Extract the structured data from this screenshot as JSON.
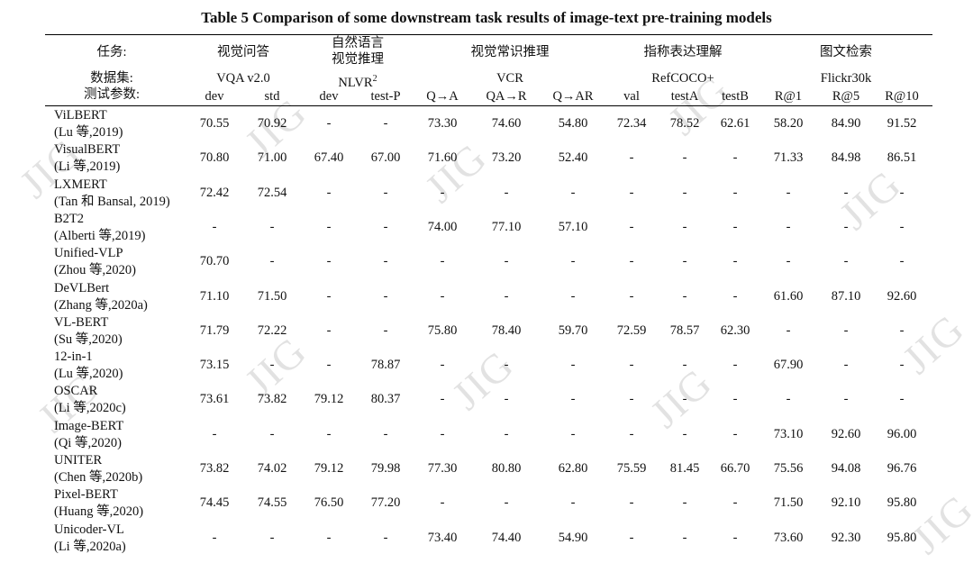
{
  "title": "Table  5  Comparison of some downstream task results of image-text pre-training models",
  "header": {
    "task_label": "任务:",
    "dataset_label": "数据集:",
    "param_label": "测试参数:",
    "tasks": [
      "视觉问答",
      "自然语言\n视觉推理",
      "视觉常识推理",
      "指称表达理解",
      "图文检索"
    ],
    "datasets": [
      "VQA v2.0",
      "NLVR²",
      "VCR",
      "RefCOCO+",
      "Flickr30k"
    ],
    "params": [
      "dev",
      "std",
      "dev",
      "test-P",
      "Q→A",
      "QA→R",
      "Q→AR",
      "val",
      "testA",
      "testB",
      "R@1",
      "R@5",
      "R@10"
    ]
  },
  "rows": [
    {
      "model": "ViLBERT",
      "cite": "(Lu 等,2019)",
      "values": [
        "70.55",
        "70.92",
        "-",
        "-",
        "73.30",
        "74.60",
        "54.80",
        "72.34",
        "78.52",
        "62.61",
        "58.20",
        "84.90",
        "91.52"
      ]
    },
    {
      "model": "VisualBERT",
      "cite": "(Li 等,2019)",
      "values": [
        "70.80",
        "71.00",
        "67.40",
        "67.00",
        "71.60",
        "73.20",
        "52.40",
        "-",
        "-",
        "-",
        "71.33",
        "84.98",
        "86.51"
      ]
    },
    {
      "model": "LXMERT",
      "cite": "(Tan 和 Bansal, 2019)",
      "values": [
        "72.42",
        "72.54",
        "-",
        "-",
        "-",
        "-",
        "-",
        "-",
        "-",
        "-",
        "-",
        "-",
        "-"
      ]
    },
    {
      "model": "B2T2",
      "cite": "(Alberti 等,2019)",
      "values": [
        "-",
        "-",
        "-",
        "-",
        "74.00",
        "77.10",
        "57.10",
        "-",
        "-",
        "-",
        "-",
        "-",
        "-"
      ]
    },
    {
      "model": "Unified-VLP",
      "cite": "(Zhou 等,2020)",
      "values": [
        "70.70",
        "-",
        "-",
        "-",
        "-",
        "-",
        "-",
        "-",
        "-",
        "-",
        "-",
        "-",
        "-"
      ]
    },
    {
      "model": "DeVLBert",
      "cite": "(Zhang 等,2020a)",
      "values": [
        "71.10",
        "71.50",
        "-",
        "-",
        "-",
        "-",
        "-",
        "-",
        "-",
        "-",
        "61.60",
        "87.10",
        "92.60"
      ]
    },
    {
      "model": "VL-BERT",
      "cite": "(Su 等,2020)",
      "values": [
        "71.79",
        "72.22",
        "-",
        "-",
        "75.80",
        "78.40",
        "59.70",
        "72.59",
        "78.57",
        "62.30",
        "-",
        "-",
        "-"
      ]
    },
    {
      "model": "12-in-1",
      "cite": "(Lu 等,2020)",
      "values": [
        "73.15",
        "-",
        "-",
        "78.87",
        "-",
        "-",
        "-",
        "-",
        "-",
        "-",
        "67.90",
        "-",
        "-"
      ]
    },
    {
      "model": "OSCAR",
      "cite": "(Li 等,2020c)",
      "values": [
        "73.61",
        "73.82",
        "79.12",
        "80.37",
        "-",
        "-",
        "-",
        "-",
        "-",
        "-",
        "-",
        "-",
        "-"
      ]
    },
    {
      "model": "Image-BERT",
      "cite": "(Qi 等,2020)",
      "values": [
        "-",
        "-",
        "-",
        "-",
        "-",
        "-",
        "-",
        "-",
        "-",
        "-",
        "73.10",
        "92.60",
        "96.00"
      ]
    },
    {
      "model": "UNITER",
      "cite": "(Chen 等,2020b)",
      "values": [
        "73.82",
        "74.02",
        "79.12",
        "79.98",
        "77.30",
        "80.80",
        "62.80",
        "75.59",
        "81.45",
        "66.70",
        "75.56",
        "94.08",
        "96.76"
      ]
    },
    {
      "model": "Pixel-BERT",
      "cite": "(Huang 等,2020)",
      "values": [
        "74.45",
        "74.55",
        "76.50",
        "77.20",
        "-",
        "-",
        "-",
        "-",
        "-",
        "-",
        "71.50",
        "92.10",
        "95.80"
      ]
    },
    {
      "model": "Unicoder-VL",
      "cite": "(Li 等,2020a)",
      "values": [
        "-",
        "-",
        "-",
        "-",
        "73.40",
        "74.40",
        "54.90",
        "-",
        "-",
        "-",
        "73.60",
        "92.30",
        "95.80"
      ]
    }
  ],
  "watermark": "JIG"
}
